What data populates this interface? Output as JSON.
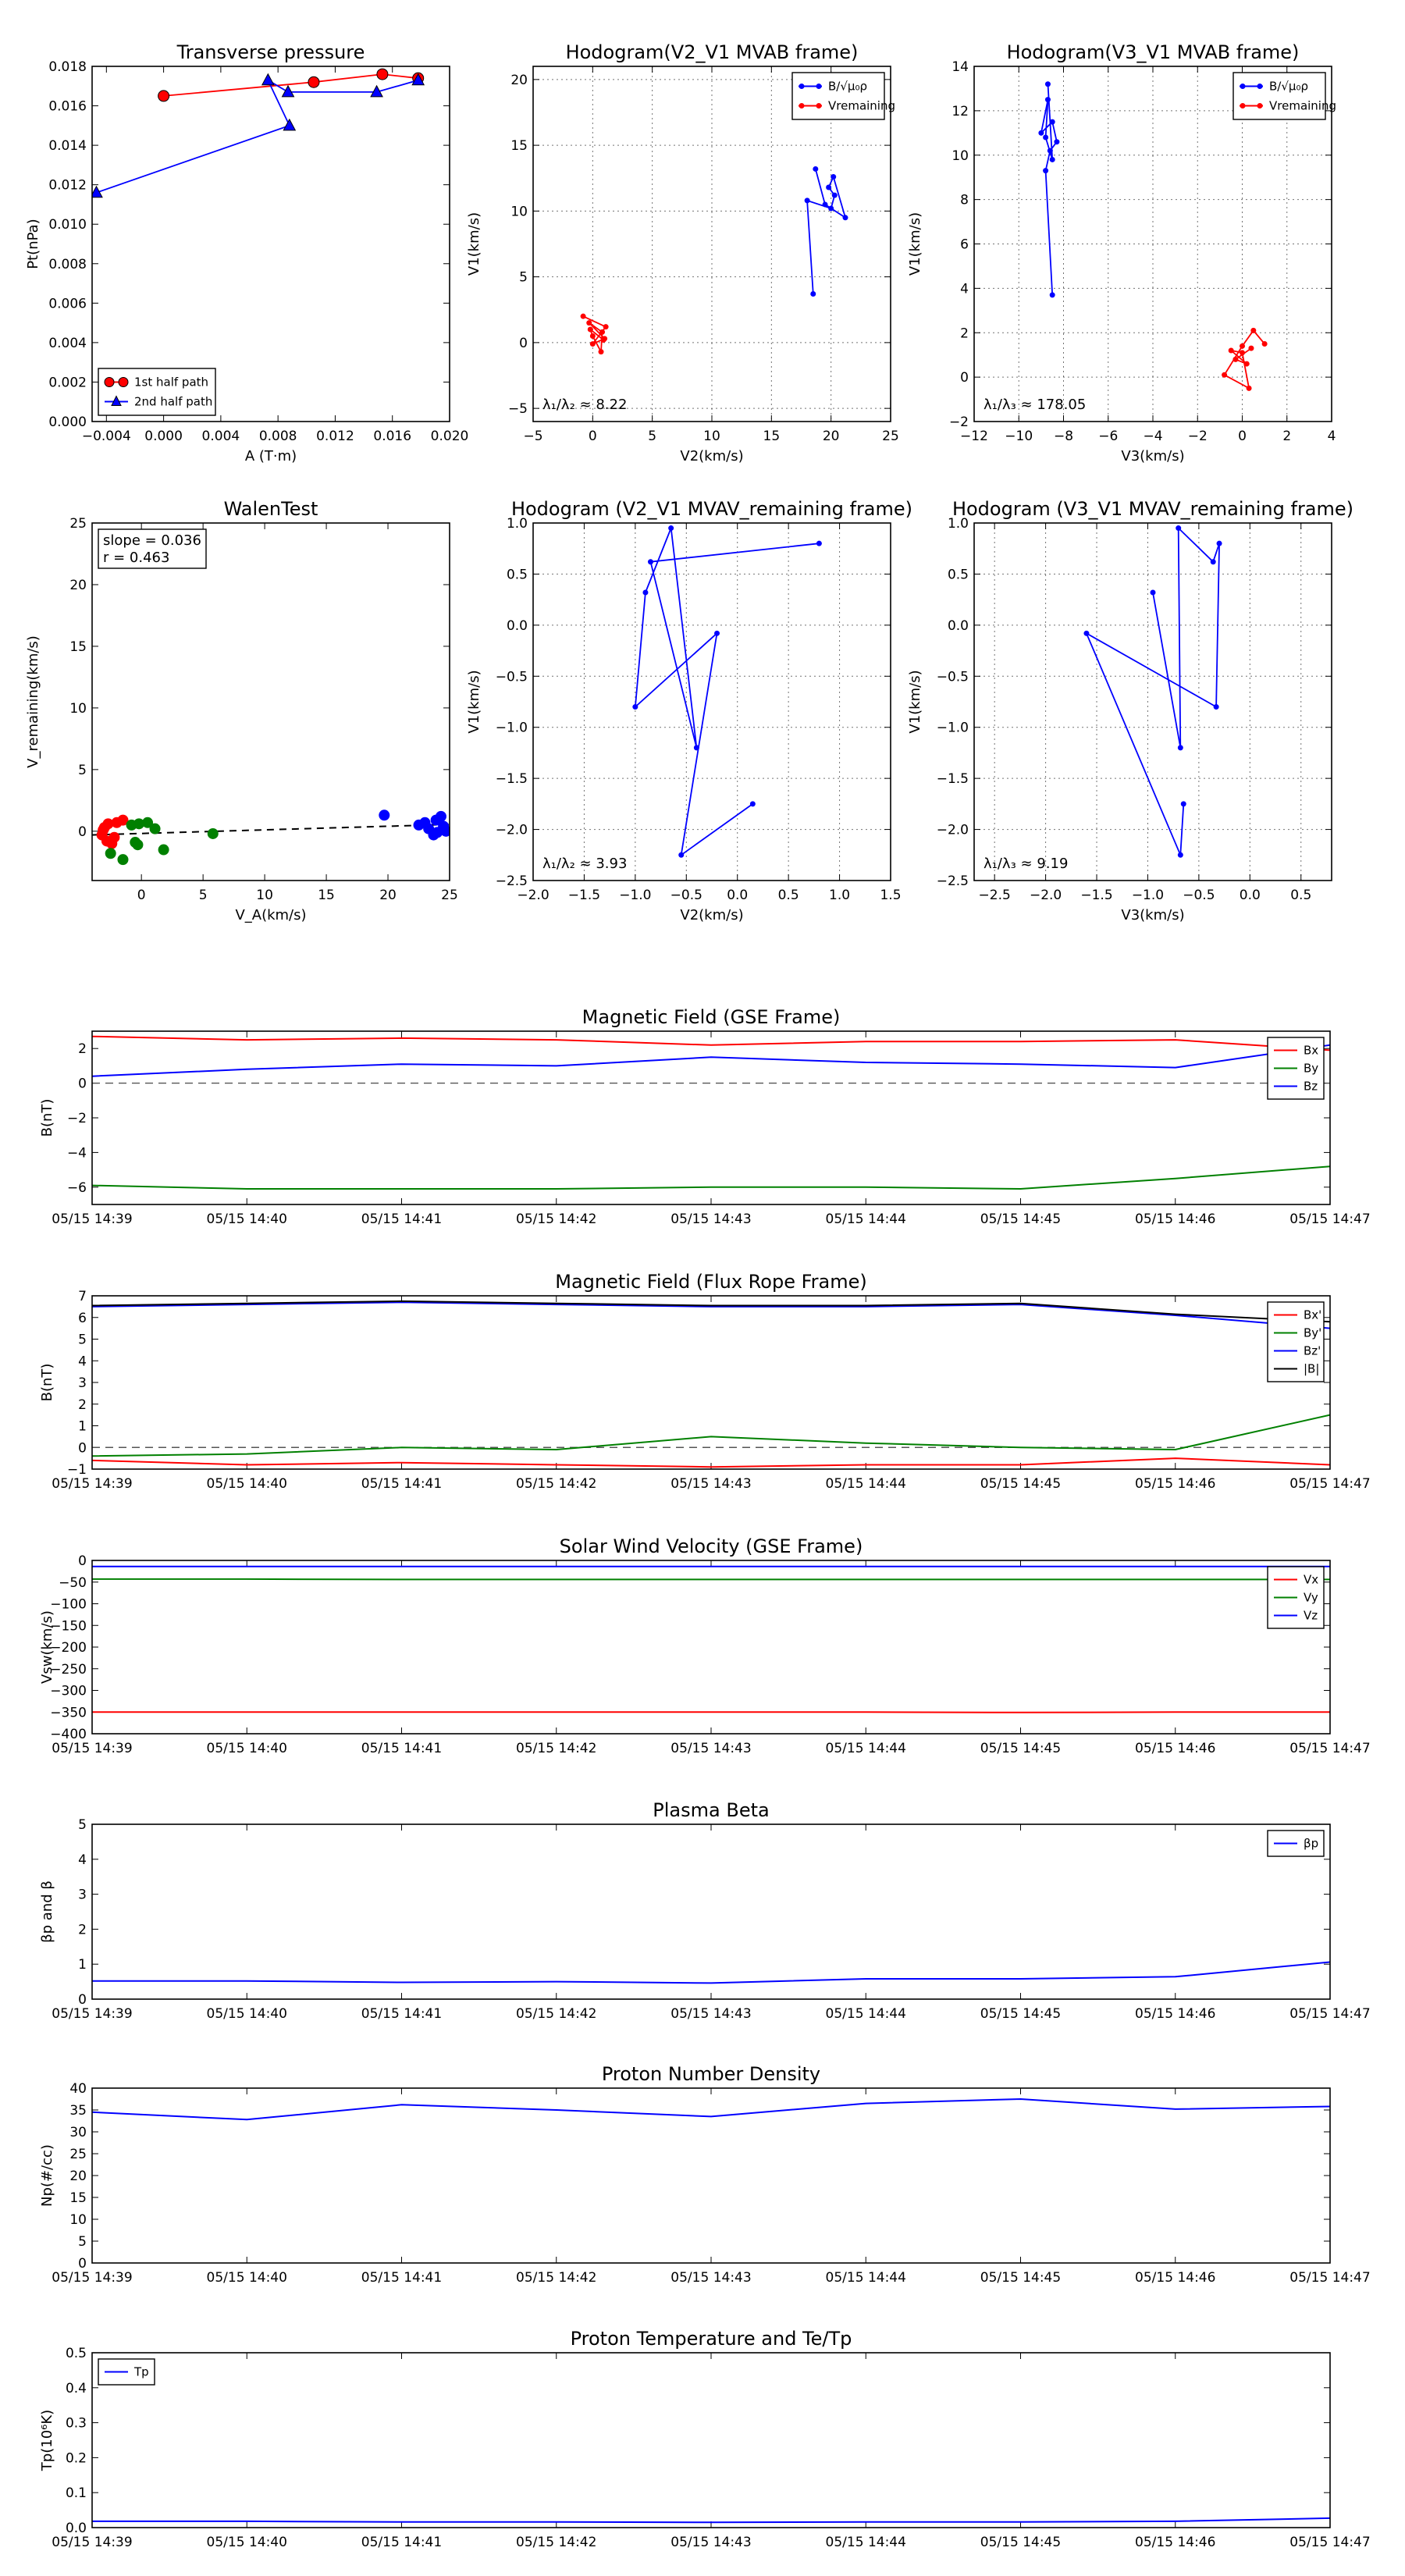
{
  "chart_data": [
    {
      "id": "transverse-pressure",
      "type": "line",
      "title": "Transverse pressure",
      "xlabel": "A (T·m)",
      "ylabel": "Pt(nPa)",
      "xlim": [
        -0.005,
        0.02
      ],
      "ylim": [
        0.0,
        0.018
      ],
      "xticks": [
        -0.004,
        0.0,
        0.004,
        0.008,
        0.012,
        0.016,
        0.02
      ],
      "xtick_labels": [
        "−0.004",
        "0.000",
        "0.004",
        "0.008",
        "0.012",
        "0.016",
        "0.020"
      ],
      "yticks": [
        0.0,
        0.002,
        0.004,
        0.006,
        0.008,
        0.01,
        0.012,
        0.014,
        0.016,
        0.018
      ],
      "ytick_labels": [
        "0.000",
        "0.002",
        "0.004",
        "0.006",
        "0.008",
        "0.010",
        "0.012",
        "0.014",
        "0.016",
        "0.018"
      ],
      "grid": false,
      "legend_position": "bottom-left",
      "series": [
        {
          "name": "1st half path",
          "color": "#ff0000",
          "marker": "circle",
          "x": [
            0.0,
            0.0105,
            0.0153,
            0.0178
          ],
          "y": [
            0.0165,
            0.0172,
            0.0176,
            0.0174
          ]
        },
        {
          "name": "2nd half path",
          "color": "#0000ff",
          "marker": "triangle",
          "x": [
            0.0178,
            0.0149,
            0.0087,
            0.0073,
            0.0088,
            -0.0047
          ],
          "y": [
            0.0173,
            0.0167,
            0.0167,
            0.0173,
            0.015,
            0.0116
          ]
        }
      ]
    },
    {
      "id": "hodogram-v2-v1-mvab",
      "type": "line",
      "title": "Hodogram(V2_V1 MVAB frame)",
      "xlabel": "V2(km/s)",
      "ylabel": "V1(km/s)",
      "xlim": [
        -5,
        25
      ],
      "ylim": [
        -6,
        21
      ],
      "xticks": [
        -5,
        0,
        5,
        10,
        15,
        20,
        25
      ],
      "xtick_labels": [
        "−5",
        "0",
        "5",
        "10",
        "15",
        "20",
        "25"
      ],
      "yticks": [
        -5,
        0,
        5,
        10,
        15,
        20
      ],
      "ytick_labels": [
        "−5",
        "0",
        "5",
        "10",
        "15",
        "20"
      ],
      "grid": true,
      "legend_position": "top-right",
      "annotation": "λ₁/λ₂ ≈ 8.22",
      "series": [
        {
          "name": "B/√μ₀ρ",
          "color": "#0000ff",
          "marker": "dot",
          "x": [
            18.5,
            18.0,
            20.0,
            20.3,
            19.8,
            20.2,
            21.2,
            19.5,
            18.7
          ],
          "y": [
            3.7,
            10.8,
            10.2,
            11.2,
            11.8,
            12.6,
            9.5,
            10.5,
            13.2
          ]
        },
        {
          "name": "Vremaining",
          "color": "#ff0000",
          "marker": "dot",
          "x": [
            -0.8,
            1.1,
            0.0,
            1.0,
            -0.3,
            0.8,
            0.7,
            0.0,
            -0.2,
            0.9
          ],
          "y": [
            2.0,
            1.2,
            -0.1,
            0.3,
            1.5,
            0.8,
            -0.7,
            0.5,
            1.0,
            0.2
          ]
        }
      ]
    },
    {
      "id": "hodogram-v3-v1-mvab",
      "type": "line",
      "title": "Hodogram(V3_V1 MVAB frame)",
      "xlabel": "V3(km/s)",
      "ylabel": "V1(km/s)",
      "xlim": [
        -12,
        4
      ],
      "ylim": [
        -2,
        14
      ],
      "xticks": [
        -12,
        -10,
        -8,
        -6,
        -4,
        -2,
        0,
        2,
        4
      ],
      "xtick_labels": [
        "−12",
        "−10",
        "−8",
        "−6",
        "−4",
        "−2",
        "0",
        "2",
        "4"
      ],
      "yticks": [
        -2,
        0,
        2,
        4,
        6,
        8,
        10,
        12,
        14
      ],
      "ytick_labels": [
        "−2",
        "0",
        "2",
        "4",
        "6",
        "8",
        "10",
        "12",
        "14"
      ],
      "grid": true,
      "legend_position": "top-right",
      "annotation": "λ₁/λ₃ ≈ 178.05",
      "series": [
        {
          "name": "B/√μ₀ρ",
          "color": "#0000ff",
          "marker": "dot",
          "x": [
            -8.5,
            -8.8,
            -8.6,
            -8.3,
            -8.5,
            -9.0,
            -8.7,
            -8.8,
            -8.5,
            -8.7
          ],
          "y": [
            3.7,
            9.3,
            10.2,
            10.6,
            11.5,
            11.0,
            12.5,
            10.8,
            9.8,
            13.2
          ]
        },
        {
          "name": "Vremaining",
          "color": "#ff0000",
          "marker": "dot",
          "x": [
            1.0,
            0.5,
            0.0,
            -0.8,
            0.3,
            0.0,
            -0.5,
            0.2,
            -0.3,
            0.4
          ],
          "y": [
            1.5,
            2.1,
            1.4,
            0.1,
            -0.5,
            1.1,
            1.2,
            0.6,
            0.8,
            1.3
          ]
        }
      ]
    },
    {
      "id": "walen-test",
      "type": "scatter",
      "title": "WalenTest",
      "xlabel": "V_A(km/s)",
      "ylabel": "V_remaining(km/s)",
      "xlim": [
        -4,
        25
      ],
      "ylim": [
        -4,
        25
      ],
      "xticks": [
        0,
        5,
        10,
        15,
        20,
        25
      ],
      "xtick_labels": [
        "0",
        "5",
        "10",
        "15",
        "20",
        "25"
      ],
      "yticks": [
        0,
        5,
        10,
        15,
        20,
        25
      ],
      "ytick_labels": [
        "0",
        "5",
        "10",
        "15",
        "20",
        "25"
      ],
      "grid": false,
      "legend_position": "top-left",
      "annotation_lines": [
        "slope = 0.036",
        "r = 0.463"
      ],
      "fit_line": {
        "x": [
          -4,
          25
        ],
        "y": [
          -0.3,
          0.55
        ],
        "color": "#000000",
        "style": "dashed"
      },
      "series": [
        {
          "name": "",
          "color": "#ff0000",
          "x": [
            -3.0,
            -2.7,
            -3.2,
            -2.4,
            -2.0,
            -3.1,
            -2.8,
            -1.5,
            -2.2
          ],
          "y": [
            0.3,
            0.6,
            -0.3,
            -1.0,
            0.7,
            0.1,
            -0.8,
            0.9,
            -0.5
          ]
        },
        {
          "name": "",
          "color": "#008000",
          "x": [
            -0.2,
            0.5,
            1.1,
            -2.5,
            -1.5,
            -0.5,
            1.8,
            5.8,
            -0.3,
            -0.8
          ],
          "y": [
            0.6,
            0.7,
            0.2,
            -1.8,
            -2.3,
            -0.9,
            -1.5,
            -0.2,
            -1.1,
            0.5
          ]
        },
        {
          "name": "",
          "color": "#0000ff",
          "x": [
            19.7,
            22.5,
            23.3,
            23.7,
            23.9,
            24.3,
            24.5,
            24.0,
            23.0,
            24.7
          ],
          "y": [
            1.3,
            0.5,
            0.2,
            -0.3,
            0.9,
            1.2,
            0.4,
            -0.1,
            0.7,
            0.0
          ]
        }
      ]
    },
    {
      "id": "hodogram-v2-v1-mvav",
      "type": "line",
      "title": "Hodogram (V2_V1 MVAV_remaining frame)",
      "xlabel": "V2(km/s)",
      "ylabel": "V1(km/s)",
      "xlim": [
        -2.0,
        1.5
      ],
      "ylim": [
        -2.5,
        1.0
      ],
      "xticks": [
        -2.0,
        -1.5,
        -1.0,
        -0.5,
        0.0,
        0.5,
        1.0,
        1.5
      ],
      "xtick_labels": [
        "−2.0",
        "−1.5",
        "−1.0",
        "−0.5",
        "0.0",
        "0.5",
        "1.0",
        "1.5"
      ],
      "yticks": [
        -2.5,
        -2.0,
        -1.5,
        -1.0,
        -0.5,
        0.0,
        0.5,
        1.0
      ],
      "ytick_labels": [
        "−2.5",
        "−2.0",
        "−1.5",
        "−1.0",
        "−0.5",
        "0.0",
        "0.5",
        "1.0"
      ],
      "grid": true,
      "legend_position": "none",
      "annotation": "λ₁/λ₂ ≈ 3.93",
      "series": [
        {
          "name": "",
          "color": "#0000ff",
          "marker": "dot",
          "x": [
            0.15,
            -0.55,
            -0.2,
            -1.0,
            -0.9,
            -0.65,
            -0.4,
            -0.85,
            0.8
          ],
          "y": [
            -1.75,
            -2.25,
            -0.08,
            -0.8,
            0.32,
            0.95,
            -1.2,
            0.62,
            0.8
          ]
        }
      ]
    },
    {
      "id": "hodogram-v3-v1-mvav",
      "type": "line",
      "title": "Hodogram (V3_V1 MVAV_remaining frame)",
      "xlabel": "V3(km/s)",
      "ylabel": "V1(km/s)",
      "xlim": [
        -2.7,
        0.8
      ],
      "ylim": [
        -2.5,
        1.0
      ],
      "xticks": [
        -2.5,
        -2.0,
        -1.5,
        -1.0,
        -0.5,
        0.0,
        0.5
      ],
      "xtick_labels": [
        "−2.5",
        "−2.0",
        "−1.5",
        "−1.0",
        "−0.5",
        "0.0",
        "0.5"
      ],
      "yticks": [
        -2.5,
        -2.0,
        -1.5,
        -1.0,
        -0.5,
        0.0,
        0.5,
        1.0
      ],
      "ytick_labels": [
        "−2.5",
        "−2.0",
        "−1.5",
        "−1.0",
        "−0.5",
        "0.0",
        "0.5",
        "1.0"
      ],
      "grid": true,
      "legend_position": "none",
      "annotation": "λ₁/λ₃ ≈ 9.19",
      "series": [
        {
          "name": "",
          "color": "#0000ff",
          "marker": "dot",
          "x": [
            -0.65,
            -0.68,
            -1.6,
            -0.33,
            -0.3,
            -0.36,
            -0.7,
            -0.68,
            -0.95
          ],
          "y": [
            -1.75,
            -2.25,
            -0.08,
            -0.8,
            0.8,
            0.62,
            0.95,
            -1.2,
            0.32
          ]
        }
      ]
    },
    {
      "id": "magnetic-field-gse",
      "type": "line",
      "title": "Magnetic Field (GSE Frame)",
      "xlabel": "",
      "ylabel": "B(nT)",
      "categories": [
        "05/15 14:39",
        "05/15 14:40",
        "05/15 14:41",
        "05/15 14:42",
        "05/15 14:43",
        "05/15 14:44",
        "05/15 14:45",
        "05/15 14:46",
        "05/15 14:47"
      ],
      "ylim": [
        -7,
        3
      ],
      "yticks": [
        -6,
        -4,
        -2,
        0,
        2
      ],
      "ytick_labels": [
        "−6",
        "−4",
        "−2",
        "0",
        "2"
      ],
      "zero_line": true,
      "grid": false,
      "legend_position": "top-right",
      "series": [
        {
          "name": "Bx",
          "color": "#ff0000",
          "values": [
            2.7,
            2.5,
            2.6,
            2.5,
            2.2,
            2.4,
            2.4,
            2.5,
            1.9
          ]
        },
        {
          "name": "By",
          "color": "#008000",
          "values": [
            -5.9,
            -6.1,
            -6.1,
            -6.1,
            -6.0,
            -6.0,
            -6.1,
            -5.5,
            -4.8
          ]
        },
        {
          "name": "Bz",
          "color": "#0000ff",
          "values": [
            0.4,
            0.8,
            1.1,
            1.0,
            1.5,
            1.2,
            1.1,
            0.9,
            2.2
          ]
        }
      ]
    },
    {
      "id": "magnetic-field-flux-rope",
      "type": "line",
      "title": "Magnetic Field (Flux Rope Frame)",
      "xlabel": "",
      "ylabel": "B(nT)",
      "categories": [
        "05/15 14:39",
        "05/15 14:40",
        "05/15 14:41",
        "05/15 14:42",
        "05/15 14:43",
        "05/15 14:44",
        "05/15 14:45",
        "05/15 14:46",
        "05/15 14:47"
      ],
      "ylim": [
        -1,
        7
      ],
      "yticks": [
        -1,
        0,
        1,
        2,
        3,
        4,
        5,
        6,
        7
      ],
      "ytick_labels": [
        "−1",
        "0",
        "1",
        "2",
        "3",
        "4",
        "5",
        "6",
        "7"
      ],
      "zero_line": true,
      "grid": false,
      "legend_position": "top-right",
      "series": [
        {
          "name": "Bx'",
          "color": "#ff0000",
          "values": [
            -0.6,
            -0.8,
            -0.7,
            -0.8,
            -0.9,
            -0.8,
            -0.8,
            -0.5,
            -0.8
          ]
        },
        {
          "name": "By'",
          "color": "#008000",
          "values": [
            -0.4,
            -0.3,
            0.0,
            -0.1,
            0.5,
            0.2,
            0.0,
            -0.1,
            1.5
          ]
        },
        {
          "name": "Bz'",
          "color": "#0000ff",
          "values": [
            6.5,
            6.6,
            6.7,
            6.6,
            6.5,
            6.5,
            6.6,
            6.1,
            5.5
          ]
        },
        {
          "name": "|B|",
          "color": "#000000",
          "values": [
            6.55,
            6.65,
            6.75,
            6.65,
            6.55,
            6.55,
            6.65,
            6.15,
            5.8
          ]
        }
      ]
    },
    {
      "id": "solar-wind-velocity",
      "type": "line",
      "title": "Solar Wind Velocity (GSE Frame)",
      "xlabel": "",
      "ylabel": "Vsw(km/s)",
      "categories": [
        "05/15 14:39",
        "05/15 14:40",
        "05/15 14:41",
        "05/15 14:42",
        "05/15 14:43",
        "05/15 14:44",
        "05/15 14:45",
        "05/15 14:46",
        "05/15 14:47"
      ],
      "ylim": [
        -400,
        0
      ],
      "yticks": [
        -400,
        -350,
        -300,
        -250,
        -200,
        -150,
        -100,
        -50,
        0
      ],
      "ytick_labels": [
        "−400",
        "−350",
        "−300",
        "−250",
        "−200",
        "−150",
        "−100",
        "−50",
        "0"
      ],
      "zero_line": false,
      "grid": false,
      "legend_position": "top-right",
      "series": [
        {
          "name": "Vx",
          "color": "#ff0000",
          "values": [
            -350,
            -350,
            -350,
            -350,
            -350,
            -350,
            -351,
            -350,
            -350
          ]
        },
        {
          "name": "Vy",
          "color": "#008000",
          "values": [
            -43,
            -43,
            -44,
            -44,
            -44,
            -44,
            -44,
            -44,
            -44
          ]
        },
        {
          "name": "Vz",
          "color": "#0000ff",
          "values": [
            -14,
            -14,
            -14,
            -14,
            -14,
            -14,
            -14,
            -14,
            -14
          ]
        }
      ]
    },
    {
      "id": "plasma-beta",
      "type": "line",
      "title": "Plasma Beta",
      "xlabel": "",
      "ylabel": "βp and β",
      "categories": [
        "05/15 14:39",
        "05/15 14:40",
        "05/15 14:41",
        "05/15 14:42",
        "05/15 14:43",
        "05/15 14:44",
        "05/15 14:45",
        "05/15 14:46",
        "05/15 14:47"
      ],
      "ylim": [
        0,
        5
      ],
      "yticks": [
        0,
        1,
        2,
        3,
        4,
        5
      ],
      "ytick_labels": [
        "0",
        "1",
        "2",
        "3",
        "4",
        "5"
      ],
      "zero_line": false,
      "grid": false,
      "legend_position": "top-right",
      "series": [
        {
          "name": "βp",
          "color": "#0000ff",
          "values": [
            0.52,
            0.52,
            0.48,
            0.5,
            0.46,
            0.58,
            0.58,
            0.64,
            1.06
          ]
        }
      ]
    },
    {
      "id": "proton-number-density",
      "type": "line",
      "title": "Proton Number Density",
      "xlabel": "",
      "ylabel": "Np(#/cc)",
      "categories": [
        "05/15 14:39",
        "05/15 14:40",
        "05/15 14:41",
        "05/15 14:42",
        "05/15 14:43",
        "05/15 14:44",
        "05/15 14:45",
        "05/15 14:46",
        "05/15 14:47"
      ],
      "ylim": [
        0,
        40
      ],
      "yticks": [
        0,
        5,
        10,
        15,
        20,
        25,
        30,
        35,
        40
      ],
      "ytick_labels": [
        "0",
        "5",
        "10",
        "15",
        "20",
        "25",
        "30",
        "35",
        "40"
      ],
      "zero_line": false,
      "grid": false,
      "legend_position": "none",
      "series": [
        {
          "name": "",
          "color": "#0000ff",
          "values": [
            34.5,
            32.8,
            36.2,
            35.0,
            33.5,
            36.5,
            37.5,
            35.2,
            35.8
          ]
        }
      ]
    },
    {
      "id": "proton-temperature",
      "type": "line",
      "title": "Proton Temperature and Te/Tp",
      "xlabel": "",
      "ylabel": "Tp(10⁶K)",
      "categories": [
        "05/15 14:39",
        "05/15 14:40",
        "05/15 14:41",
        "05/15 14:42",
        "05/15 14:43",
        "05/15 14:44",
        "05/15 14:45",
        "05/15 14:46",
        "05/15 14:47"
      ],
      "ylim": [
        0,
        0.5
      ],
      "yticks": [
        0.0,
        0.1,
        0.2,
        0.3,
        0.4,
        0.5
      ],
      "ytick_labels": [
        "0.0",
        "0.1",
        "0.2",
        "0.3",
        "0.4",
        "0.5"
      ],
      "zero_line": false,
      "grid": false,
      "legend_position": "top-left",
      "series": [
        {
          "name": "Tp",
          "color": "#0000ff",
          "values": [
            0.018,
            0.018,
            0.016,
            0.016,
            0.015,
            0.016,
            0.016,
            0.018,
            0.027
          ]
        }
      ]
    }
  ]
}
